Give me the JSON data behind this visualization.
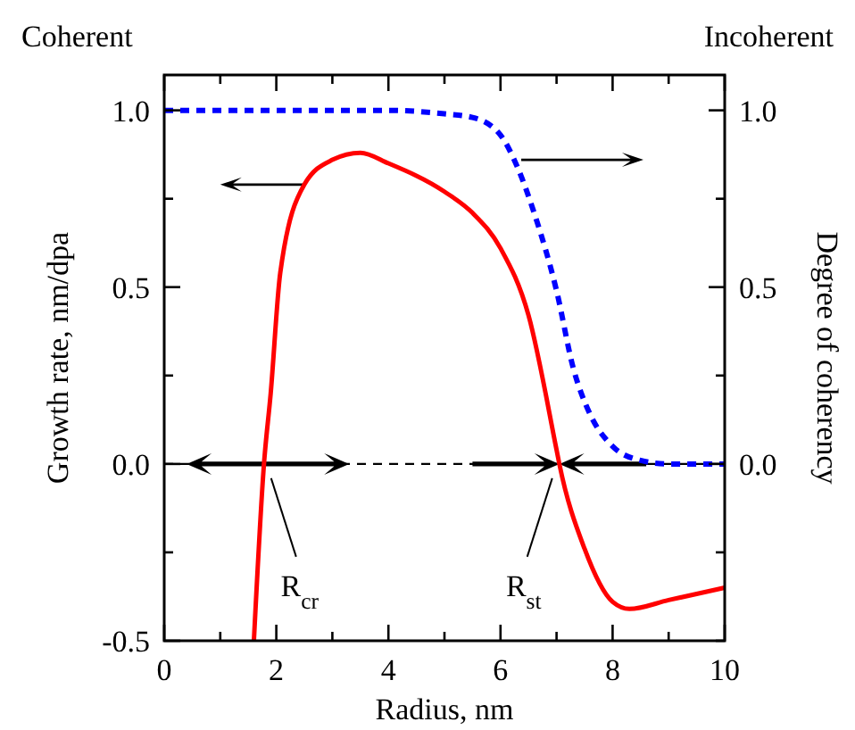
{
  "chart_data": {
    "type": "line",
    "xlabel": "Radius, nm",
    "ylabel": "Growth rate, nm/dpa",
    "y2label": "Degree of coherency",
    "xlim": [
      0,
      10
    ],
    "xticks": [
      0,
      {
        "value": 1,
        "label": null
      },
      2,
      {
        "value": 3,
        "label": null
      },
      4,
      {
        "value": 5,
        "label": null
      },
      6,
      {
        "value": 7,
        "label": null
      },
      8,
      {
        "value": 9,
        "label": null
      },
      10
    ],
    "ylim": [
      -0.5,
      1.1
    ],
    "yticks": [
      -0.5,
      {
        "value": -0.25,
        "label": null
      },
      {
        "value": 0,
        "label": "0.0"
      },
      {
        "value": 0.25,
        "label": null
      },
      0.5,
      {
        "value": 0.75,
        "label": null
      },
      {
        "value": 1,
        "label": "1.0"
      }
    ],
    "y2lim": [
      -0.5,
      1.1
    ],
    "y2ticks": [
      {
        "value": -0.5,
        "label": null
      },
      {
        "value": -0.25,
        "label": null
      },
      {
        "value": 0,
        "label": "0.0"
      },
      {
        "value": 0.25,
        "label": null
      },
      {
        "value": 0.5,
        "label": "0.5"
      },
      {
        "value": 0.75,
        "label": null
      },
      {
        "value": 1,
        "label": "1.0"
      }
    ],
    "series": [
      {
        "color": "#ff0000",
        "line_style": "solid",
        "x": [
          1.6,
          1.78,
          1.9,
          2.07,
          2.5,
          3,
          3.5,
          4,
          5,
          5.5,
          6,
          6.5,
          7,
          7.05,
          7.5,
          8,
          8.3,
          9,
          10
        ],
        "values": [
          -0.5,
          0,
          0.2,
          0.54,
          0.79,
          0.86,
          0.88,
          0.85,
          0.77,
          0.71,
          0.61,
          0.42,
          0.04,
          0,
          -0.24,
          -0.39,
          -0.41,
          -0.385,
          -0.35
        ]
      },
      {
        "color": "#0000ff",
        "line_style": "dashed",
        "axis": "y2",
        "x": [
          0,
          4,
          5,
          5.5,
          6,
          6.3,
          6.6,
          7,
          7.3,
          7.6,
          8,
          8.5,
          9,
          10
        ],
        "values": [
          1,
          1,
          0.99,
          0.98,
          0.93,
          0.84,
          0.71,
          0.49,
          0.27,
          0.14,
          0.05,
          0.01,
          0,
          0
        ]
      }
    ],
    "ref_lines": [
      {
        "axis": "y",
        "value": 0,
        "color": "#000000",
        "line_style": "dashed"
      }
    ],
    "annotations": [
      "Coherent",
      "Incoherent",
      {
        "text": "R$_{cr}$",
        "x": 1.78,
        "y": 0
      },
      {
        "text": "R$_{st}$",
        "x": 7.05,
        "y": 0
      }
    ],
    "marker": "none",
    "grid": false
  }
}
